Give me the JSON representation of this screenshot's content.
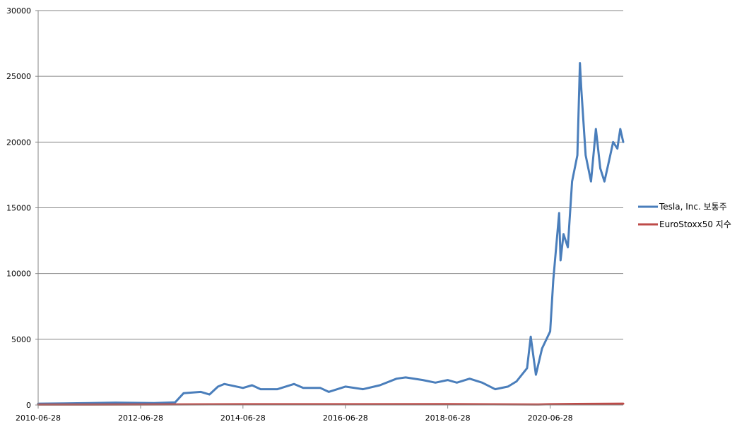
{
  "chart_data": {
    "type": "line",
    "title": "",
    "xlabel": "",
    "ylabel": "",
    "ylim": [
      0,
      30000
    ],
    "y_ticks": [
      0,
      5000,
      10000,
      15000,
      20000,
      25000,
      30000
    ],
    "y_tick_labels": [
      "0",
      "5000",
      "10000",
      "15000",
      "20000",
      "25000",
      "30000"
    ],
    "x_range": [
      "2010-06-28",
      "2021-12-01"
    ],
    "x_ticks": [
      "2010-06-28",
      "2012-06-28",
      "2014-06-28",
      "2016-06-28",
      "2018-06-28",
      "2020-06-28"
    ],
    "grid": true,
    "legend_position": "right",
    "series": [
      {
        "name": "Tesla, Inc. 보통주",
        "color": "#4a7ebb",
        "x": [
          "2010-06-28",
          "2011-01-01",
          "2012-01-01",
          "2012-10-01",
          "2013-03-01",
          "2013-05-01",
          "2013-09-01",
          "2013-11-01",
          "2014-01-01",
          "2014-02-15",
          "2014-06-28",
          "2014-09-01",
          "2014-11-01",
          "2015-03-01",
          "2015-06-28",
          "2015-09-01",
          "2016-01-01",
          "2016-03-01",
          "2016-06-28",
          "2016-11-01",
          "2017-03-01",
          "2017-06-28",
          "2017-09-01",
          "2018-01-01",
          "2018-04-01",
          "2018-06-28",
          "2018-09-01",
          "2018-12-01",
          "2019-03-01",
          "2019-06-01",
          "2019-09-01",
          "2019-11-01",
          "2020-01-15",
          "2020-02-10",
          "2020-03-18",
          "2020-05-01",
          "2020-06-28",
          "2020-07-20",
          "2020-08-31",
          "2020-09-10",
          "2020-10-01",
          "2020-11-01",
          "2020-12-01",
          "2021-01-08",
          "2021-01-26",
          "2021-02-05",
          "2021-03-08",
          "2021-04-15",
          "2021-05-20",
          "2021-06-20",
          "2021-07-20",
          "2021-08-20",
          "2021-09-20",
          "2021-10-20",
          "2021-11-10",
          "2021-12-01"
        ],
        "values": [
          100,
          120,
          180,
          150,
          200,
          900,
          1000,
          800,
          1400,
          1600,
          1300,
          1500,
          1200,
          1200,
          1600,
          1300,
          1300,
          1000,
          1400,
          1200,
          1500,
          2000,
          2100,
          1900,
          1700,
          1900,
          1700,
          2000,
          1700,
          1200,
          1400,
          1800,
          2800,
          5200,
          2300,
          4300,
          5600,
          9500,
          14600,
          11000,
          13000,
          12000,
          17000,
          19000,
          26000,
          24000,
          19000,
          17000,
          21000,
          18000,
          17000,
          18500,
          20000,
          19500,
          21000,
          20000
        ]
      },
      {
        "name": "EuroStoxx50 지수",
        "color": "#be4b48",
        "x": [
          "2010-06-28",
          "2012-06-28",
          "2014-06-28",
          "2016-06-28",
          "2018-06-28",
          "2020-03-18",
          "2020-06-28",
          "2021-01-01",
          "2021-12-01"
        ],
        "values": [
          30,
          35,
          60,
          60,
          70,
          40,
          60,
          80,
          100
        ]
      }
    ]
  }
}
